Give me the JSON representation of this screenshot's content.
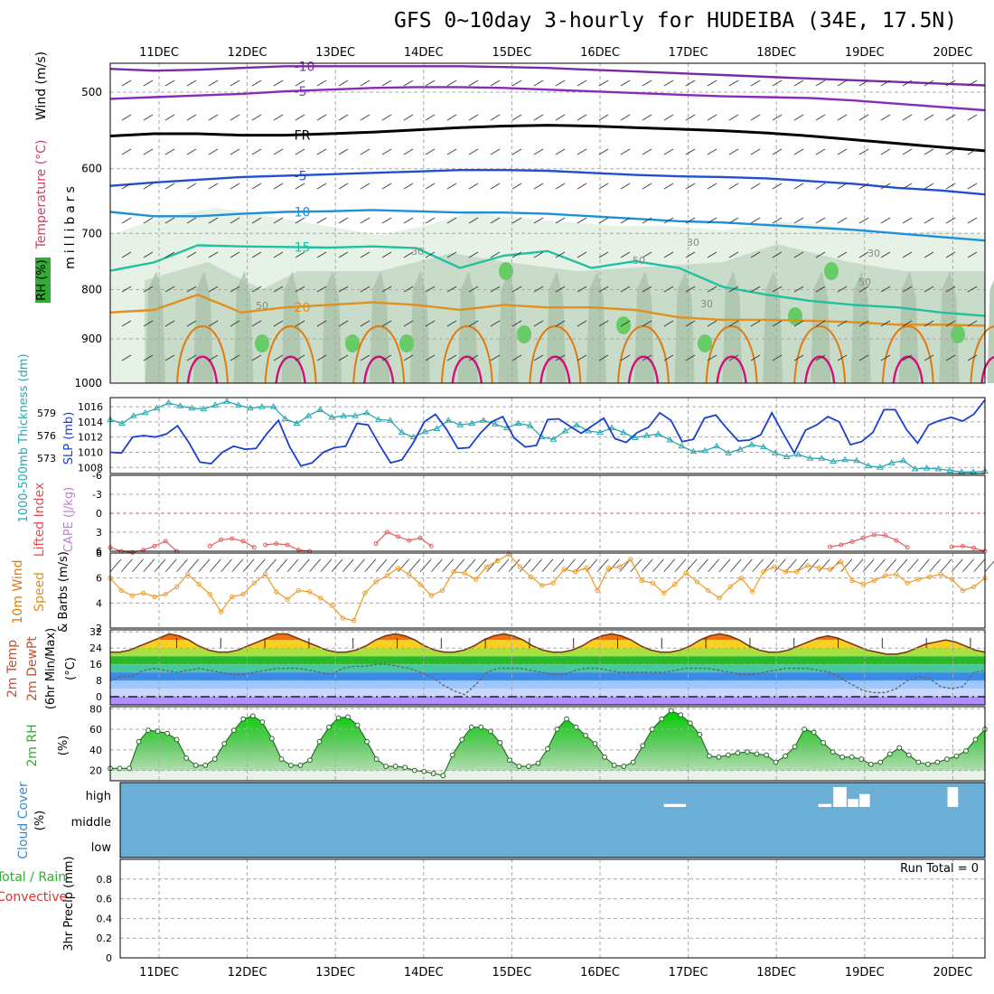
{
  "title": "GFS 0~10day 3-hourly for HUDEIBA (34E, 17.5N)",
  "days": [
    "11DEC",
    "12DEC",
    "13DEC",
    "14DEC",
    "15DEC",
    "16DEC",
    "17DEC",
    "18DEC",
    "19DEC",
    "20DEC"
  ],
  "colors": {
    "grid": "#999999",
    "rh_green": "#33cc33",
    "cloud_blue": "#6baed6"
  },
  "chart_data": [
    {
      "type": "heatmap",
      "panel": "upper-air",
      "ylabel_parts": [
        "RH (%)",
        "Temperature (°C)",
        "Wind (m/s)"
      ],
      "ylabel_units": "millibars",
      "yticks": [
        "500",
        "600",
        "700",
        "800",
        "900",
        "1000"
      ],
      "ylim": [
        1000,
        450
      ],
      "y_scale": "log-pressure",
      "temperature_isotherms": [
        {
          "label": "-10",
          "p": [
            473,
            475,
            474,
            472,
            470,
            470,
            470,
            470,
            470,
            471,
            472,
            474,
            476,
            478,
            480,
            482,
            484,
            486,
            488,
            490,
            492
          ]
        },
        {
          "label": "-5",
          "p": [
            508,
            506,
            504,
            502,
            499,
            497,
            495,
            494,
            494,
            495,
            497,
            499,
            501,
            503,
            505,
            506,
            507,
            510,
            514,
            518,
            522
          ]
        },
        {
          "label": "FR",
          "p": [
            555,
            552,
            552,
            554,
            554,
            552,
            550,
            547,
            544,
            542,
            541,
            542,
            544,
            546,
            548,
            551,
            555,
            560,
            565,
            570,
            575
          ]
        },
        {
          "label": "-5",
          "p": [
            625,
            620,
            616,
            612,
            610,
            608,
            606,
            604,
            602,
            602,
            603,
            606,
            609,
            611,
            612,
            614,
            618,
            622,
            628,
            632,
            638
          ]
        },
        {
          "label": "10",
          "p": [
            665,
            672,
            672,
            668,
            665,
            664,
            662,
            664,
            666,
            666,
            668,
            672,
            676,
            680,
            682,
            686,
            690,
            694,
            700,
            706,
            712
          ]
        },
        {
          "label": "15",
          "p": [
            765,
            750,
            720,
            722,
            723,
            724,
            722,
            725,
            760,
            738,
            730,
            760,
            748,
            760,
            795,
            810,
            822,
            830,
            835,
            845,
            852
          ]
        },
        {
          "label": "20",
          "p": [
            845,
            840,
            810,
            845,
            835,
            830,
            825,
            830,
            840,
            830,
            835,
            835,
            840,
            855,
            860,
            860,
            862,
            865,
            870,
            870,
            872
          ]
        }
      ],
      "rh_labels": [
        "30",
        "50",
        "30",
        "50",
        "30",
        "50",
        "30"
      ],
      "legend_note": "RH (%) shading"
    },
    {
      "type": "line",
      "panel": "thickness-slp",
      "ylabel": "1000-500mb Thickness (dm)",
      "ylabel2": "SLP (mb)",
      "left_ticks": [
        "579",
        "576",
        "573"
      ],
      "right_ticks": [
        "1016",
        "1014",
        "1012",
        "1010",
        "1008"
      ],
      "series": [
        {
          "name": "1000-500mb Thickness (dm)",
          "axis": "left",
          "color": "#2aa8b0",
          "values": [
            578.1,
            577.6,
            578.6,
            579.0,
            579.6,
            580.3,
            579.9,
            579.6,
            579.5,
            580.0,
            580.5,
            580.0,
            579.6,
            579.8,
            579.8,
            578.2,
            577.6,
            578.6,
            579.4,
            578.4,
            578.6,
            578.6,
            579.0,
            578.1,
            578.0,
            576.4,
            575.8,
            576.5,
            576.9,
            578.0,
            577.4,
            577.6,
            578.0,
            577.5,
            577.0,
            577.6,
            577.3,
            575.8,
            575.5,
            576.6,
            577.4,
            576.6,
            576.4,
            577.0,
            576.4,
            575.7,
            576.0,
            576.2,
            575.4,
            574.6,
            573.9,
            574.0,
            574.6,
            573.7,
            574.2,
            574.8,
            574.5,
            573.7,
            573.2,
            573.5,
            573.0,
            573.0,
            572.6,
            572.8,
            572.7,
            572.0,
            571.8,
            572.4,
            572.7,
            571.6,
            571.7,
            571.6,
            571.4,
            571.2,
            571.2,
            571.3
          ]
        },
        {
          "name": "SLP (mb)",
          "axis": "right",
          "color": "#1a3fcc",
          "values": [
            1010.0,
            1009.9,
            1012.0,
            1012.2,
            1012.0,
            1012.4,
            1013.5,
            1011.3,
            1008.7,
            1008.5,
            1010.0,
            1010.8,
            1010.4,
            1010.5,
            1012.5,
            1014.2,
            1010.7,
            1008.2,
            1008.6,
            1010.0,
            1010.6,
            1010.8,
            1013.8,
            1013.6,
            1011.0,
            1008.6,
            1009.0,
            1011.2,
            1014.0,
            1015.0,
            1013.0,
            1010.5,
            1010.6,
            1012.5,
            1014.0,
            1014.7,
            1011.9,
            1010.7,
            1010.9,
            1014.3,
            1014.4,
            1013.4,
            1012.5,
            1013.5,
            1014.5,
            1011.8,
            1011.3,
            1012.6,
            1013.3,
            1015.2,
            1014.2,
            1011.4,
            1011.7,
            1014.5,
            1014.9,
            1013.1,
            1011.5,
            1011.6,
            1012.3,
            1015.2,
            1012.5,
            1009.9,
            1012.9,
            1013.6,
            1014.7,
            1014.0,
            1011.0,
            1011.4,
            1012.6,
            1015.6,
            1015.6,
            1013.0,
            1011.2,
            1013.6,
            1014.2,
            1014.6,
            1014.1,
            1015.0,
            1016.9
          ]
        }
      ]
    },
    {
      "type": "line",
      "panel": "lifted-index-cape",
      "ylabel": "Lifted Index",
      "ylabel2": "CAPE (J/kg)",
      "yticks": [
        "-6",
        "-3",
        "0",
        "3",
        "6"
      ],
      "ylim": [
        6,
        -6
      ],
      "zero_line": true,
      "series": [
        {
          "name": "Lifted Index",
          "color": "#e06060",
          "segments": [
            {
              "start": 0,
              "values": [
                5.4,
                6.0,
                6.2,
                5.8,
                5.2,
                4.4,
                6.0
              ]
            },
            {
              "start": 9,
              "values": [
                5.2,
                4.2,
                4.0,
                4.4,
                5.4
              ]
            },
            {
              "start": 14,
              "values": [
                5.0,
                4.8,
                5.0,
                5.8,
                6.0
              ]
            },
            {
              "start": 24,
              "values": [
                4.8,
                3.0,
                3.7,
                4.3,
                3.9,
                5.2
              ]
            },
            {
              "start": 65,
              "values": [
                5.3,
                5.0,
                4.5,
                3.9,
                3.4,
                3.5,
                4.3,
                5.4
              ]
            },
            {
              "start": 76,
              "values": [
                5.3,
                5.2,
                5.5,
                6.0
              ]
            }
          ]
        }
      ]
    },
    {
      "type": "line",
      "panel": "10m-wind",
      "ylabel": "10m Wind Speed & Barbs (m/s)",
      "yticks": [
        "8",
        "6",
        "4",
        "2"
      ],
      "ylim": [
        2,
        8
      ],
      "series": [
        {
          "name": "10m Wind Speed",
          "color": "#f0a030",
          "values": [
            6.0,
            5.0,
            4.6,
            4.8,
            4.5,
            4.7,
            5.3,
            6.3,
            5.5,
            4.7,
            3.3,
            4.5,
            4.7,
            5.6,
            6.3,
            4.9,
            4.3,
            5.0,
            4.9,
            4.4,
            3.8,
            2.8,
            2.6,
            4.8,
            5.7,
            6.2,
            6.8,
            6.3,
            5.5,
            4.6,
            5.0,
            6.5,
            6.4,
            5.9,
            6.9,
            7.4,
            7.9,
            6.9,
            6.1,
            5.4,
            5.6,
            6.7,
            6.5,
            6.8,
            5.0,
            6.8,
            6.9,
            7.5,
            5.8,
            5.6,
            4.8,
            5.5,
            6.4,
            5.7,
            5.0,
            4.4,
            5.3,
            6.0,
            4.9,
            6.5,
            6.9,
            6.5,
            6.5,
            7.0,
            6.8,
            6.7,
            7.3,
            5.8,
            5.5,
            5.8,
            6.2,
            6.3,
            5.6,
            5.9,
            6.1,
            6.3,
            5.9,
            5.0,
            5.3,
            6.0
          ]
        }
      ]
    },
    {
      "type": "area",
      "panel": "2m-temp",
      "ylabel": "2m Temp 2m DewPt (6hr Min/Max) (°C)",
      "yticks": [
        "32",
        "24",
        "16",
        "8",
        "0"
      ],
      "ylim": [
        -4,
        33
      ],
      "series": [
        {
          "name": "2m Temp",
          "color": "#8a4020",
          "values": [
            22,
            22,
            23,
            25,
            27,
            29,
            31,
            30,
            28,
            25,
            23,
            22,
            22,
            23,
            25,
            27,
            29,
            31,
            31,
            29,
            27,
            25,
            23,
            22,
            22,
            23,
            25,
            28,
            30,
            31,
            30,
            28,
            25,
            23,
            22,
            22,
            23,
            25,
            28,
            30,
            31,
            30,
            28,
            25,
            23,
            22,
            22,
            23,
            25,
            28,
            30,
            31,
            30,
            28,
            25,
            23,
            22,
            22,
            23,
            25,
            28,
            30,
            31,
            30,
            28,
            25,
            23,
            22,
            22,
            23,
            25,
            27,
            29,
            30,
            29,
            27,
            25,
            23,
            22,
            21,
            21,
            22,
            24,
            26,
            27,
            28,
            27,
            25,
            23,
            22
          ]
        },
        {
          "name": "2m DewPt",
          "color": "#777777",
          "values": [
            8,
            10,
            10,
            13,
            14,
            13,
            12,
            13,
            14,
            13,
            12,
            11,
            11,
            12,
            13,
            14,
            14,
            14,
            13,
            12,
            11,
            14,
            15,
            15,
            16,
            16,
            15,
            14,
            12,
            10,
            6,
            3,
            1,
            6,
            12,
            14,
            14,
            14,
            13,
            12,
            11,
            11,
            13,
            14,
            14,
            13,
            12,
            12,
            12,
            12,
            12,
            13,
            14,
            14,
            14,
            13,
            12,
            11,
            11,
            12,
            13,
            14,
            14,
            14,
            13,
            12,
            9,
            6,
            3,
            2,
            2,
            4,
            8,
            10,
            9,
            5,
            4,
            5,
            12,
            13
          ]
        }
      ]
    },
    {
      "type": "area",
      "panel": "2m-rh",
      "ylabel": "2m RH (%)",
      "yticks": [
        "80",
        "60",
        "40",
        "20"
      ],
      "ylim": [
        10,
        82
      ],
      "series": [
        {
          "name": "2m RH",
          "color": "#33aa33",
          "values": [
            22,
            22,
            22,
            48,
            59,
            58,
            56,
            50,
            32,
            25,
            25,
            31,
            46,
            59,
            70,
            73,
            67,
            51,
            31,
            25,
            25,
            30,
            48,
            62,
            71,
            72,
            64,
            48,
            31,
            24,
            24,
            23,
            20,
            19,
            17,
            15,
            35,
            50,
            62,
            62,
            58,
            47,
            30,
            24,
            24,
            27,
            41,
            60,
            70,
            62,
            54,
            46,
            33,
            25,
            24,
            28,
            44,
            60,
            70,
            78,
            74,
            66,
            55,
            34,
            33,
            35,
            37,
            38,
            36,
            35,
            28,
            34,
            43,
            60,
            57,
            47,
            38,
            33,
            33,
            31,
            26,
            28,
            36,
            42,
            35,
            28,
            26,
            28,
            31,
            34,
            39,
            50,
            60
          ]
        }
      ]
    },
    {
      "type": "bar",
      "panel": "cloud-cover",
      "ylabel": "Cloud Cover (%)",
      "yticks": [
        "high",
        "middle",
        "low"
      ],
      "bars": [
        {
          "day_pos": 5.85,
          "width": 0.25,
          "level": "high",
          "height": 0.15
        },
        {
          "day_pos": 7.55,
          "width": 0.15,
          "level": "high",
          "height": 0.15
        },
        {
          "day_pos": 7.72,
          "width": 0.15,
          "level": "high",
          "height": 1.0
        },
        {
          "day_pos": 7.87,
          "width": 0.12,
          "level": "high",
          "height": 0.4
        },
        {
          "day_pos": 8.0,
          "width": 0.12,
          "level": "high",
          "height": 0.65
        },
        {
          "day_pos": 9.0,
          "width": 0.12,
          "level": "high",
          "height": 1.0
        },
        {
          "day_pos": 9.97,
          "width": 0.12,
          "level": "high",
          "height": 0.15
        }
      ]
    },
    {
      "type": "bar",
      "panel": "precip",
      "ylabel": "3hr Precip (mm)",
      "ylabel_total": "Total / Rain",
      "ylabel_conv": "Convective",
      "yticks": [
        "0.8",
        "0.6",
        "0.4",
        "0.2",
        "0"
      ],
      "ylim": [
        0,
        1.0
      ],
      "run_total": "Run Total = 0",
      "values": []
    }
  ]
}
